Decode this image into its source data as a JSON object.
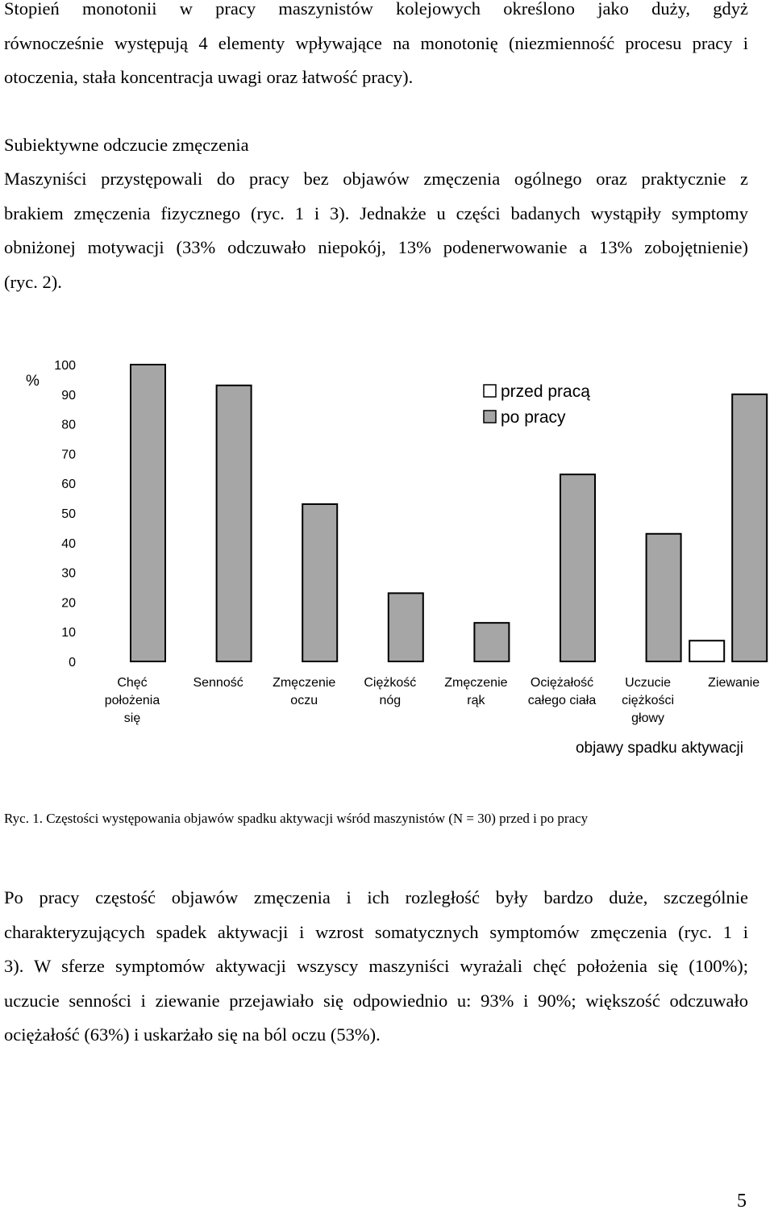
{
  "paragraph1": {
    "lines": [
      "Stopień monotonii w pracy maszynistów kolejowych określono jako duży, gdyż",
      "równocześnie występują 4 elementy wpływające na monotonię (niezmienność procesu pracy i",
      "otoczenia, stała koncentracja uwagi oraz łatwość pracy)."
    ]
  },
  "section_heading": "Subiektywne odczucie zmęczenia",
  "paragraph2": {
    "lines": [
      "Maszyniści przystępowali do pracy bez objawów zmęczenia ogólnego oraz praktycznie z",
      "brakiem zmęczenia fizycznego (ryc. 1 i 3). Jednakże u części badanych wystąpiły symptomy",
      "obniżonej motywacji (33% odczuwało niepokój, 13% podenerwowanie a 13% zobojętnienie)",
      "(ryc. 2)."
    ]
  },
  "chart_data": {
    "type": "bar",
    "ylabel": "%",
    "xlabel": "objawy spadku aktywacji",
    "ylim": [
      0,
      100
    ],
    "yticks": [
      "100",
      "90",
      "80",
      "70",
      "60",
      "50",
      "40",
      "30",
      "20",
      "10",
      "0"
    ],
    "categories": [
      [
        "Chęć",
        "położenia",
        "się"
      ],
      [
        "Senność"
      ],
      [
        "Zmęczenie",
        "oczu"
      ],
      [
        "Ciężkość",
        "nóg"
      ],
      [
        "Zmęczenie",
        "rąk"
      ],
      [
        "Ociężałość",
        "całego ciała"
      ],
      [
        "Uczucie",
        "ciężkości",
        "głowy"
      ],
      [
        "Ziewanie"
      ]
    ],
    "series": [
      {
        "name": "przed pracą",
        "color": "#ffffff",
        "values": [
          0,
          0,
          0,
          0,
          0,
          0,
          0,
          7
        ]
      },
      {
        "name": "po pracy",
        "color": "#a6a6a6",
        "values": [
          100,
          93,
          53,
          23,
          13,
          63,
          43,
          90
        ]
      }
    ],
    "legend_position": "top-right"
  },
  "figure_caption": "Ryc. 1. Częstości występowania objawów spadku aktywacji wśród maszynistów (N = 30) przed i po pracy",
  "paragraph3": {
    "lines": [
      "Po pracy częstość objawów zmęczenia i ich rozległość były bardzo duże, szczególnie",
      "charakteryzujących spadek aktywacji i wzrost somatycznych symptomów zmęczenia (ryc. 1 i",
      "3). W sferze symptomów aktywacji wszyscy maszyniści wyrażali chęć położenia się (100%);",
      "uczucie senności i ziewanie przejawiało się odpowiednio u: 93% i 90%; większość odczuwało",
      "ociężałość (63%) i uskarżało się na ból oczu (53%)."
    ]
  },
  "page_number": "5"
}
